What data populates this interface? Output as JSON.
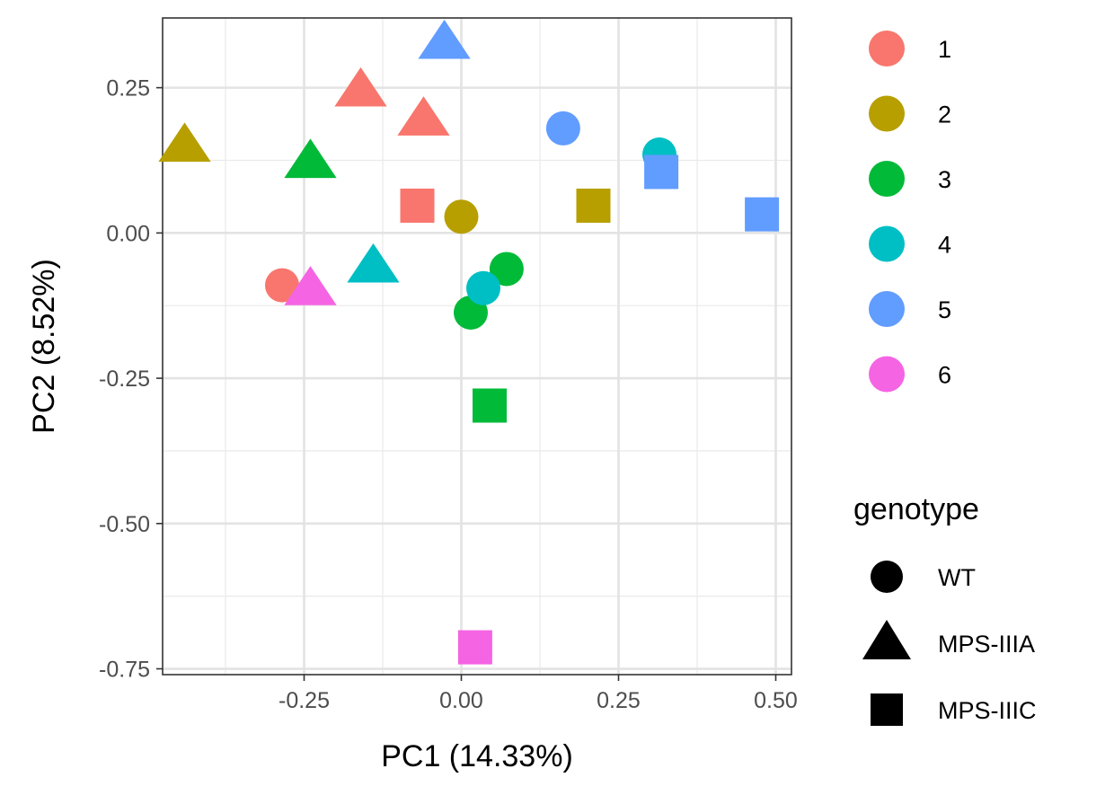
{
  "chart_data": {
    "type": "scatter",
    "xlabel": "PC1 (14.33%)",
    "ylabel": "PC2 (8.52%)",
    "xlim": [
      -0.475,
      0.525
    ],
    "ylim": [
      -0.76,
      0.37
    ],
    "x_ticks": [
      -0.25,
      0.0,
      0.25,
      0.5
    ],
    "x_tick_labels": [
      "-0.25",
      "0.00",
      "0.25",
      "0.50"
    ],
    "y_ticks": [
      0.25,
      0.0,
      -0.25,
      -0.5,
      -0.75
    ],
    "y_tick_labels": [
      "0.25",
      "0.00",
      "-0.25",
      "-0.50",
      "-0.75"
    ],
    "grid": true,
    "theme": "bw",
    "color_legend": {
      "items": [
        {
          "label": "1",
          "color": "#F8766D"
        },
        {
          "label": "2",
          "color": "#B79F00"
        },
        {
          "label": "3",
          "color": "#00BA38"
        },
        {
          "label": "4",
          "color": "#00BFC4"
        },
        {
          "label": "5",
          "color": "#619CFF"
        },
        {
          "label": "6",
          "color": "#F564E3"
        }
      ]
    },
    "shape_legend": {
      "title": "genotype",
      "items": [
        {
          "label": "WT",
          "shape": "circle"
        },
        {
          "label": "MPS-IIIA",
          "shape": "triangle"
        },
        {
          "label": "MPS-IIIC",
          "shape": "square"
        }
      ]
    },
    "legend_position": "right",
    "points": [
      {
        "x": -0.285,
        "y": -0.09,
        "group": "1",
        "genotype": "WT"
      },
      {
        "x": -0.16,
        "y": 0.245,
        "group": "1",
        "genotype": "MPS-IIIA"
      },
      {
        "x": -0.06,
        "y": 0.195,
        "group": "1",
        "genotype": "MPS-IIIA"
      },
      {
        "x": -0.07,
        "y": 0.047,
        "group": "1",
        "genotype": "MPS-IIIC"
      },
      {
        "x": 0.0,
        "y": 0.028,
        "group": "2",
        "genotype": "WT"
      },
      {
        "x": -0.44,
        "y": 0.15,
        "group": "2",
        "genotype": "MPS-IIIA"
      },
      {
        "x": 0.21,
        "y": 0.047,
        "group": "2",
        "genotype": "MPS-IIIC"
      },
      {
        "x": 0.072,
        "y": -0.062,
        "group": "3",
        "genotype": "WT"
      },
      {
        "x": 0.015,
        "y": -0.137,
        "group": "3",
        "genotype": "WT"
      },
      {
        "x": -0.24,
        "y": 0.122,
        "group": "3",
        "genotype": "MPS-IIIA"
      },
      {
        "x": 0.045,
        "y": -0.297,
        "group": "3",
        "genotype": "MPS-IIIC"
      },
      {
        "x": 0.315,
        "y": 0.135,
        "group": "4",
        "genotype": "WT"
      },
      {
        "x": 0.035,
        "y": -0.095,
        "group": "4",
        "genotype": "WT"
      },
      {
        "x": -0.14,
        "y": -0.058,
        "group": "4",
        "genotype": "MPS-IIIA"
      },
      {
        "x": 0.162,
        "y": 0.18,
        "group": "5",
        "genotype": "WT"
      },
      {
        "x": -0.027,
        "y": 0.327,
        "group": "5",
        "genotype": "MPS-IIIA"
      },
      {
        "x": 0.318,
        "y": 0.105,
        "group": "5",
        "genotype": "MPS-IIIC"
      },
      {
        "x": 0.478,
        "y": 0.032,
        "group": "5",
        "genotype": "MPS-IIIC"
      },
      {
        "x": -0.24,
        "y": -0.097,
        "group": "6",
        "genotype": "MPS-IIIA"
      },
      {
        "x": 0.022,
        "y": -0.713,
        "group": "6",
        "genotype": "MPS-IIIC"
      }
    ]
  }
}
